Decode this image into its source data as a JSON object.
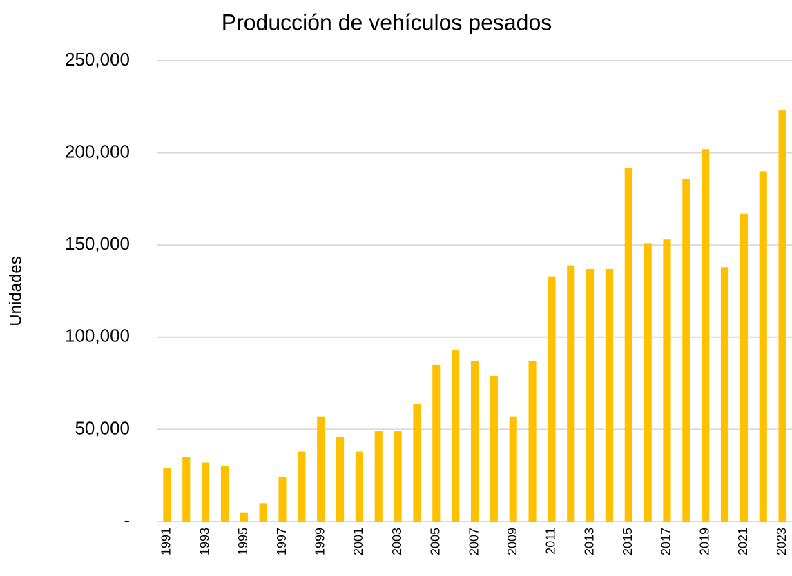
{
  "chart_data": {
    "type": "bar",
    "title": "Producción de vehículos pesados",
    "y_label": "Unidades",
    "categories": [
      "1991",
      null,
      "1993",
      null,
      "1995",
      null,
      "1997",
      null,
      "1999",
      null,
      "2001",
      null,
      "2003",
      null,
      "2005",
      null,
      "2007",
      null,
      "2009",
      null,
      "2011",
      null,
      "2013",
      null,
      "2015",
      null,
      "2017",
      null,
      "2019",
      null,
      "2021",
      null,
      "2023"
    ],
    "values": [
      29000,
      35000,
      32000,
      30000,
      5000,
      10000,
      24000,
      38000,
      57000,
      46000,
      38000,
      49000,
      49000,
      64000,
      85000,
      93000,
      87000,
      79000,
      57000,
      87000,
      133000,
      139000,
      137000,
      137000,
      192000,
      151000,
      153000,
      186000,
      202000,
      138000,
      167000,
      190000,
      223000
    ],
    "color": "#FFC000",
    "ylim": [
      0,
      250000
    ],
    "yticks": [
      {
        "value": 0,
        "label": "-"
      },
      {
        "value": 50000,
        "label": "50,000"
      },
      {
        "value": 100000,
        "label": "100,000"
      },
      {
        "value": 150000,
        "label": "150,000"
      },
      {
        "value": 200000,
        "label": "200,000"
      },
      {
        "value": 250000,
        "label": "250,000"
      }
    ],
    "grid": true
  }
}
